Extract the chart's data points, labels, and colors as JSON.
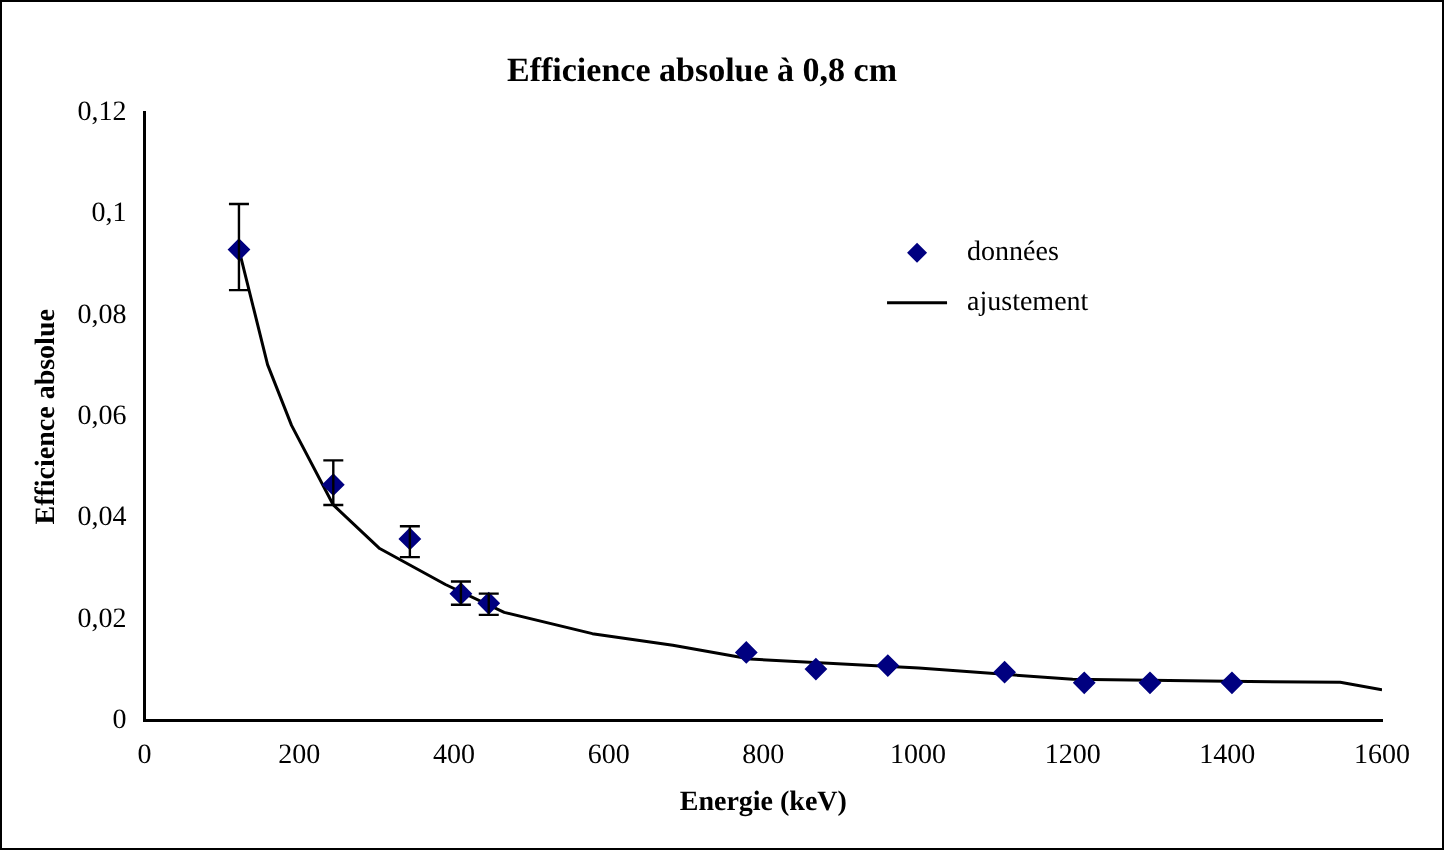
{
  "chart_data": {
    "type": "scatter",
    "title": "Efficience absolue à 0,8 cm",
    "xlabel": "Energie (keV)",
    "ylabel": "Efficience absolue",
    "xlim": [
      0,
      1600
    ],
    "xticks": [
      0,
      200,
      400,
      600,
      800,
      1000,
      1200,
      1400,
      1600
    ],
    "ylim": [
      0,
      0.12
    ],
    "yticks": [
      {
        "value": 0,
        "label": "0"
      },
      {
        "value": 0.02,
        "label": "0,02"
      },
      {
        "value": 0.04,
        "label": "0,04"
      },
      {
        "value": 0.06,
        "label": "0,06"
      },
      {
        "value": 0.08,
        "label": "0,08"
      },
      {
        "value": 0.1,
        "label": "0,1"
      },
      {
        "value": 0.12,
        "label": "0,12"
      }
    ],
    "grid": false,
    "legend": "top right",
    "series": [
      {
        "name": "données",
        "color": "#000080",
        "marker": "diamond",
        "x": [
          122,
          244,
          343,
          409,
          445,
          778,
          868,
          961,
          1112,
          1215,
          1300,
          1406
        ],
        "values": [
          0.093,
          0.0466,
          0.0359,
          0.0251,
          0.0232,
          0.0135,
          0.0102,
          0.0109,
          0.0096,
          0.0075,
          0.0075,
          0.0075
        ],
        "errors": [
          [
            0.085,
            0.102
          ],
          [
            0.0426,
            0.0514
          ],
          [
            0.0323,
            0.0384
          ],
          [
            0.0229,
            0.0275
          ],
          [
            0.0209,
            0.0251
          ],
          null,
          null,
          null,
          null,
          null,
          null,
          null
        ]
      },
      {
        "name": "ajustement",
        "type": "line",
        "color": "#000000",
        "marker": "none",
        "line_style": "solid",
        "x": [
          122,
          159,
          190,
          244,
          304,
          389,
          465,
          579,
          683,
          783,
          1001,
          1200,
          1400,
          1546,
          1600
        ],
        "values": [
          0.093,
          0.0703,
          0.0583,
          0.0426,
          0.034,
          0.0269,
          0.0214,
          0.0172,
          0.0149,
          0.0122,
          0.0104,
          0.0082,
          0.0078,
          0.0076,
          0.0061
        ]
      }
    ]
  }
}
